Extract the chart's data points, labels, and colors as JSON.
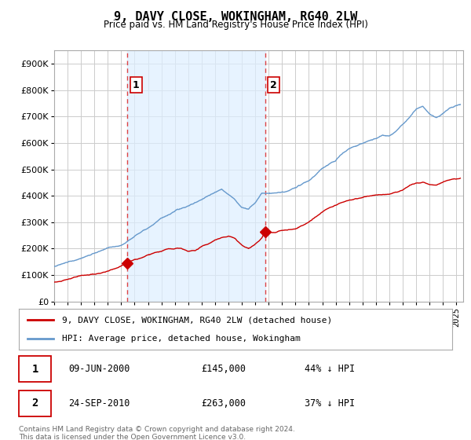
{
  "title": "9, DAVY CLOSE, WOKINGHAM, RG40 2LW",
  "subtitle": "Price paid vs. HM Land Registry's House Price Index (HPI)",
  "ylim": [
    0,
    950000
  ],
  "yticks": [
    0,
    100000,
    200000,
    300000,
    400000,
    500000,
    600000,
    700000,
    800000,
    900000
  ],
  "xlim_start": 1995.0,
  "xlim_end": 2025.5,
  "sale1_date": 2000.44,
  "sale1_price": 145000,
  "sale1_label": "1",
  "sale1_text": "09-JUN-2000",
  "sale1_pct": "44% ↓ HPI",
  "sale2_date": 2010.73,
  "sale2_price": 263000,
  "sale2_label": "2",
  "sale2_text": "24-SEP-2010",
  "sale2_pct": "37% ↓ HPI",
  "red_color": "#cc0000",
  "blue_color": "#6699cc",
  "blue_fill_color": "#ddeeff",
  "vline_color": "#dd4444",
  "legend_label_red": "9, DAVY CLOSE, WOKINGHAM, RG40 2LW (detached house)",
  "legend_label_blue": "HPI: Average price, detached house, Wokingham",
  "footer": "Contains HM Land Registry data © Crown copyright and database right 2024.\nThis data is licensed under the Open Government Licence v3.0.",
  "background_color": "#ffffff",
  "grid_color": "#cccccc"
}
